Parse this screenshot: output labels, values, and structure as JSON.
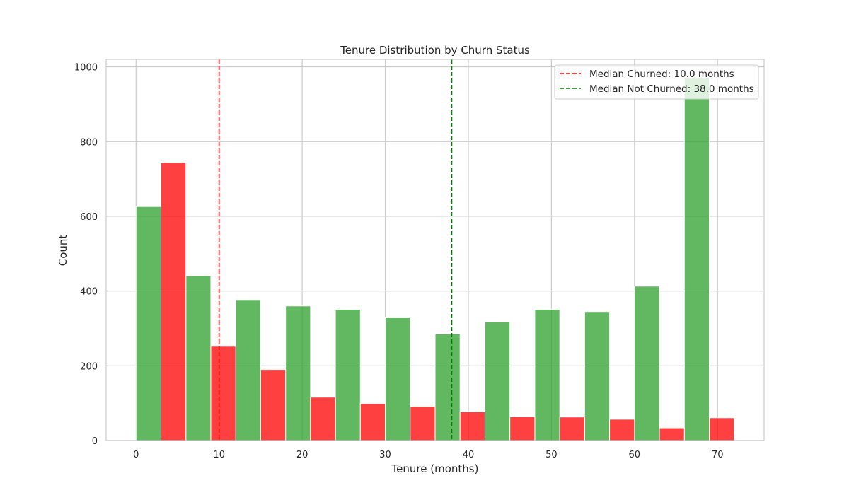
{
  "chart_data": {
    "type": "bar",
    "title": "Tenure Distribution by Churn Status",
    "xlabel": "Tenure (months)",
    "ylabel": "Count",
    "xlim": [
      -3.6,
      75.6
    ],
    "ylim": [
      0,
      1020
    ],
    "xticks": [
      0,
      10,
      20,
      30,
      40,
      50,
      60,
      70
    ],
    "yticks": [
      0,
      200,
      400,
      600,
      800,
      1000
    ],
    "grid": true,
    "legend_position": "top-right",
    "colors": {
      "Not Churned": "#2ca02c",
      "Churned": "#ff0000"
    },
    "series": [
      {
        "key": "Not Churned",
        "bins": [
          {
            "x0": 0,
            "x1": 3,
            "value": 626
          },
          {
            "x0": 6,
            "x1": 9,
            "value": 441
          },
          {
            "x0": 12,
            "x1": 15,
            "value": 377
          },
          {
            "x0": 18,
            "x1": 21,
            "value": 360
          },
          {
            "x0": 24,
            "x1": 27,
            "value": 351
          },
          {
            "x0": 30,
            "x1": 33,
            "value": 330
          },
          {
            "x0": 36,
            "x1": 39,
            "value": 285
          },
          {
            "x0": 42,
            "x1": 45,
            "value": 317
          },
          {
            "x0": 48,
            "x1": 51,
            "value": 351
          },
          {
            "x0": 54,
            "x1": 57,
            "value": 345
          },
          {
            "x0": 60,
            "x1": 63,
            "value": 413
          },
          {
            "x0": 66,
            "x1": 69,
            "value": 970
          }
        ]
      },
      {
        "key": "Churned",
        "bins": [
          {
            "x0": 3,
            "x1": 6,
            "value": 744
          },
          {
            "x0": 9,
            "x1": 12,
            "value": 254
          },
          {
            "x0": 15,
            "x1": 18,
            "value": 190
          },
          {
            "x0": 21,
            "x1": 24,
            "value": 116
          },
          {
            "x0": 27,
            "x1": 30,
            "value": 99
          },
          {
            "x0": 33,
            "x1": 36,
            "value": 91
          },
          {
            "x0": 39,
            "x1": 42,
            "value": 77
          },
          {
            "x0": 45,
            "x1": 48,
            "value": 64
          },
          {
            "x0": 51,
            "x1": 54,
            "value": 63
          },
          {
            "x0": 57,
            "x1": 60,
            "value": 57
          },
          {
            "x0": 63,
            "x1": 66,
            "value": 34
          },
          {
            "x0": 69,
            "x1": 72,
            "value": 61
          }
        ]
      }
    ],
    "reference_lines": [
      {
        "x": 10.0,
        "color": "#ff0000",
        "label": "Median Churned: 10.0 months"
      },
      {
        "x": 38.0,
        "color": "#008000",
        "label": "Median Not Churned: 38.0 months"
      }
    ]
  }
}
